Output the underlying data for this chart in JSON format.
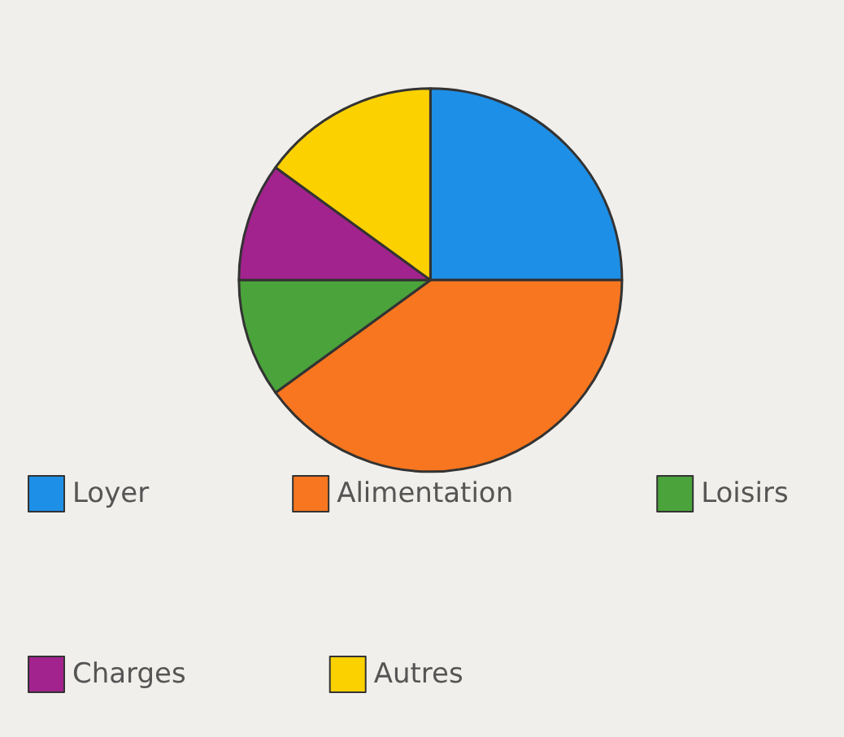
{
  "chart_data": {
    "type": "pie",
    "categories": [
      "Loyer",
      "Alimentation",
      "Loisirs",
      "Charges",
      "Autres"
    ],
    "values": [
      25,
      40,
      10,
      10,
      15
    ],
    "colors": [
      "#1e8fe6",
      "#f7761f",
      "#4ba33b",
      "#a2238d",
      "#fcd100"
    ],
    "legend": "bottom"
  }
}
